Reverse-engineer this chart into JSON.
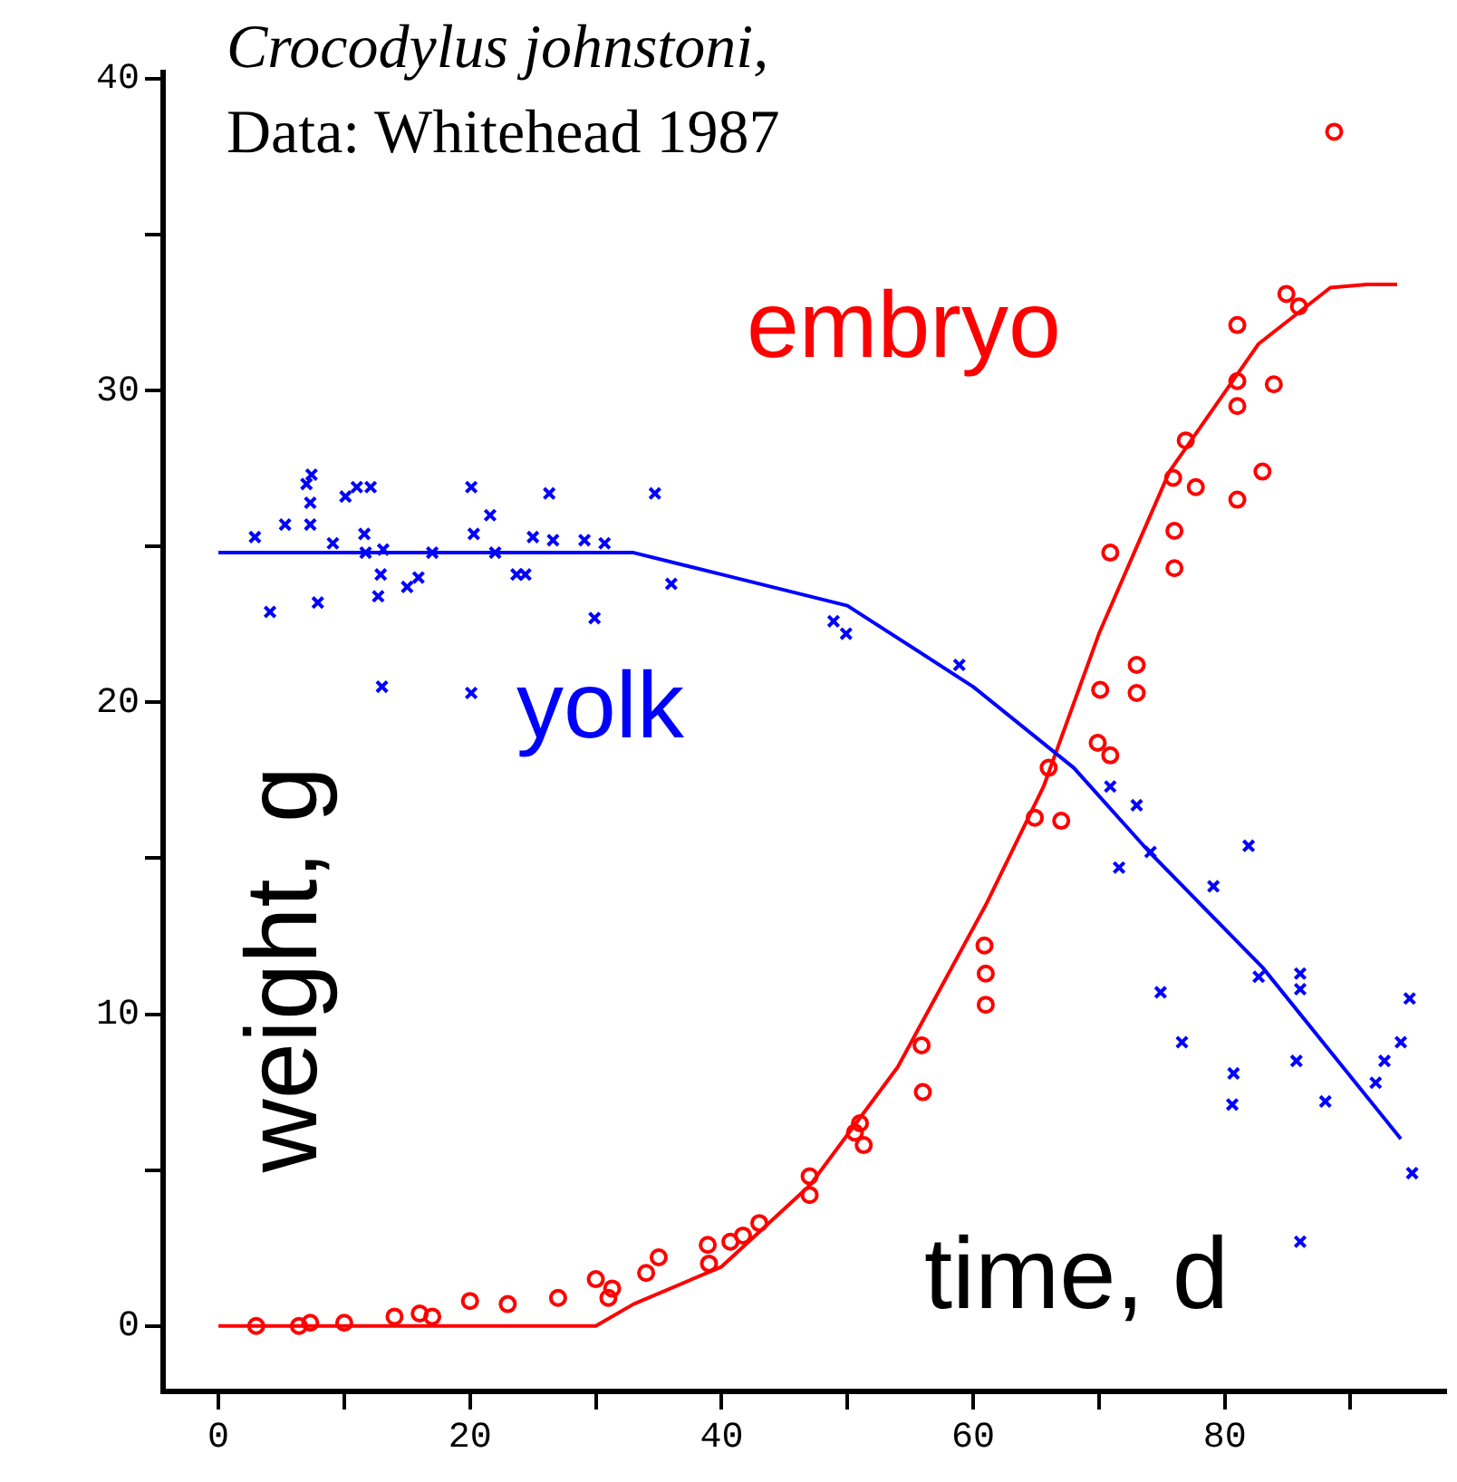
{
  "chart_data": {
    "type": "scatter",
    "title": "Crocodylus johnstoni,",
    "subtitle": "Data: Whitehead 1987",
    "xlabel": "time, d",
    "ylabel": "weight, g",
    "xlim": [
      -4.4,
      97.6
    ],
    "ylim": [
      -2.1,
      40.2
    ],
    "xticks": [
      0,
      {
        "value": 10,
        "label": null
      },
      20,
      {
        "value": 30,
        "label": null
      },
      40,
      {
        "value": 50,
        "label": null
      },
      60,
      {
        "value": 70,
        "label": null
      },
      80,
      {
        "value": 90,
        "label": null
      }
    ],
    "yticks": [
      0,
      {
        "value": 5,
        "label": null
      },
      10,
      {
        "value": 15,
        "label": null
      },
      20,
      {
        "value": 25,
        "label": null
      },
      30,
      {
        "value": 35,
        "label": null
      },
      40
    ],
    "grid": false,
    "legend": false,
    "series": [
      {
        "name": "yolk",
        "type": "scatter",
        "marker": "cross",
        "color": "#0000ff",
        "x": [
          2.9,
          4.1,
          5.3,
          7,
          7.3,
          7.3,
          7.4,
          7.9,
          9.1,
          10.1,
          11,
          12.1,
          11.6,
          11.7,
          12.7,
          12.9,
          13,
          13.1,
          15,
          15.9,
          17,
          20.1,
          20.3,
          20.1,
          21.6,
          22,
          23.7,
          24.4,
          25,
          26.3,
          26.6,
          29.1,
          29.9,
          30.7,
          34.7,
          36,
          48.9,
          49.9,
          58.9,
          70.9,
          73,
          71.6,
          74.1,
          74.9,
          76.6,
          79.1,
          80.7,
          80.6,
          81.9,
          82.7,
          86,
          86,
          85.7,
          86,
          88,
          92,
          92.7,
          94,
          94.7,
          94.9
        ],
        "values": [
          25.3,
          22.9,
          25.7,
          27,
          26.4,
          25.7,
          27.3,
          23.2,
          25.1,
          26.6,
          26.9,
          26.9,
          25.4,
          24.8,
          23.4,
          24.1,
          20.5,
          24.9,
          23.7,
          24,
          24.8,
          26.9,
          25.4,
          20.3,
          26,
          24.8,
          24.1,
          24.1,
          25.3,
          26.7,
          25.2,
          25.2,
          22.7,
          25.1,
          26.7,
          23.8,
          22.6,
          22.2,
          21.2,
          17.3,
          16.7,
          14.7,
          15.2,
          10.7,
          9.1,
          14.1,
          8.1,
          7.1,
          15.4,
          11.2,
          11.3,
          10.8,
          8.5,
          2.7,
          7.2,
          7.8,
          8.5,
          9.1,
          10.5,
          4.9
        ]
      },
      {
        "name": "embryo",
        "type": "scatter",
        "marker": "circle",
        "color": "#ff0000",
        "x": [
          3,
          6.4,
          7.3,
          10,
          14,
          16,
          17,
          20,
          23,
          27,
          30,
          31,
          31.3,
          34,
          35,
          38.9,
          39,
          40.7,
          41.7,
          43,
          47,
          47,
          50.6,
          51,
          51.3,
          55.9,
          56,
          60.9,
          61,
          61,
          64.9,
          66,
          67,
          69.9,
          70.1,
          70.9,
          70.9,
          73,
          73,
          75.9,
          76,
          76,
          76.9,
          77.7,
          81,
          81,
          81,
          81,
          83,
          83.9,
          84.9,
          85.9,
          88.7
        ],
        "values": [
          0,
          0,
          0.1,
          0.1,
          0.3,
          0.4,
          0.3,
          0.8,
          0.7,
          0.9,
          1.5,
          0.9,
          1.2,
          1.7,
          2.2,
          2.6,
          2,
          2.7,
          2.9,
          3.3,
          4.8,
          4.2,
          6.2,
          6.5,
          5.8,
          9,
          7.5,
          12.2,
          11.3,
          10.3,
          16.3,
          17.9,
          16.2,
          18.7,
          20.4,
          24.8,
          18.3,
          20.3,
          21.2,
          27.2,
          25.5,
          24.3,
          28.4,
          26.9,
          26.5,
          29.5,
          30.3,
          32.1,
          27.4,
          30.2,
          33.1,
          32.7,
          38.3
        ]
      },
      {
        "type": "line",
        "marker": "none",
        "color": "#0000ff",
        "x": [
          0,
          33,
          40,
          50,
          60,
          68,
          74,
          83,
          94
        ],
        "values": [
          24.8,
          24.8,
          24.1,
          23.1,
          20.5,
          17.9,
          15.2,
          11.5,
          6.0
        ]
      },
      {
        "type": "line",
        "marker": "none",
        "color": "#ff0000",
        "x": [
          0,
          30,
          33,
          40,
          47,
          54,
          61,
          65.6,
          70,
          75.6,
          82.7,
          88.4,
          91.3,
          93.7
        ],
        "values": [
          0,
          0,
          0.7,
          1.9,
          4.5,
          8.3,
          13.5,
          17.3,
          22.2,
          27.4,
          31.5,
          33.3,
          33.4,
          33.4
        ]
      }
    ]
  }
}
